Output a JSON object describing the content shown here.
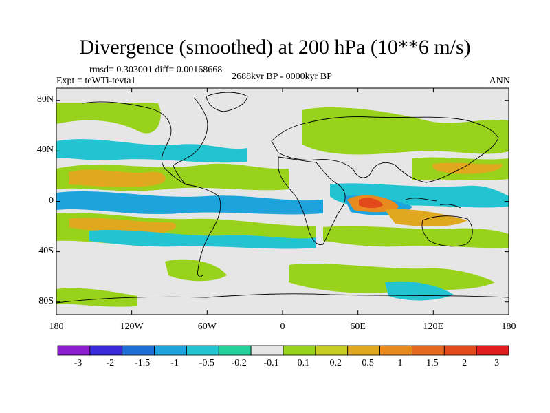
{
  "title": "Divergence (smoothed) at 200 hPa (10**6 m/s)",
  "stats_line": "rmsd= 0.303001 diff= 0.00168668",
  "experiment_line": "Expt = teWTi-tevta1",
  "period_line": "2688kyr BP - 0000kyr BP",
  "season_line": "ANN",
  "map": {
    "projection": "cylindrical-equidistant",
    "lon_range": [
      -180,
      180
    ],
    "lat_range": [
      -90,
      90
    ],
    "background_color": "#e6e6e6",
    "lat_ticks": [
      {
        "value": 80,
        "label": "80N"
      },
      {
        "value": 40,
        "label": "40N"
      },
      {
        "value": 0,
        "label": "0"
      },
      {
        "value": -40,
        "label": "40S"
      },
      {
        "value": -80,
        "label": "80S"
      }
    ],
    "lon_ticks": [
      {
        "value": -180,
        "label": "180"
      },
      {
        "value": -120,
        "label": "120W"
      },
      {
        "value": -60,
        "label": "60W"
      },
      {
        "value": 0,
        "label": "0"
      },
      {
        "value": 60,
        "label": "60E"
      },
      {
        "value": 120,
        "label": "120E"
      },
      {
        "value": 180,
        "label": "180"
      }
    ]
  },
  "colorbar": {
    "colors": [
      "#8c1ed0",
      "#3a2bd8",
      "#1e6ed6",
      "#1ea4dc",
      "#22c4d2",
      "#22d29a",
      "#e6e6e6",
      "#98d21a",
      "#c8cc22",
      "#e0a81e",
      "#e88a1e",
      "#e66a1e",
      "#e24a1c",
      "#e01e1e"
    ],
    "labels": [
      "-3",
      "-2",
      "-1.5",
      "-1",
      "-0.5",
      "-0.2",
      "-0.1",
      "0.1",
      "0.2",
      "0.5",
      "1",
      "1.5",
      "2",
      "3"
    ]
  }
}
